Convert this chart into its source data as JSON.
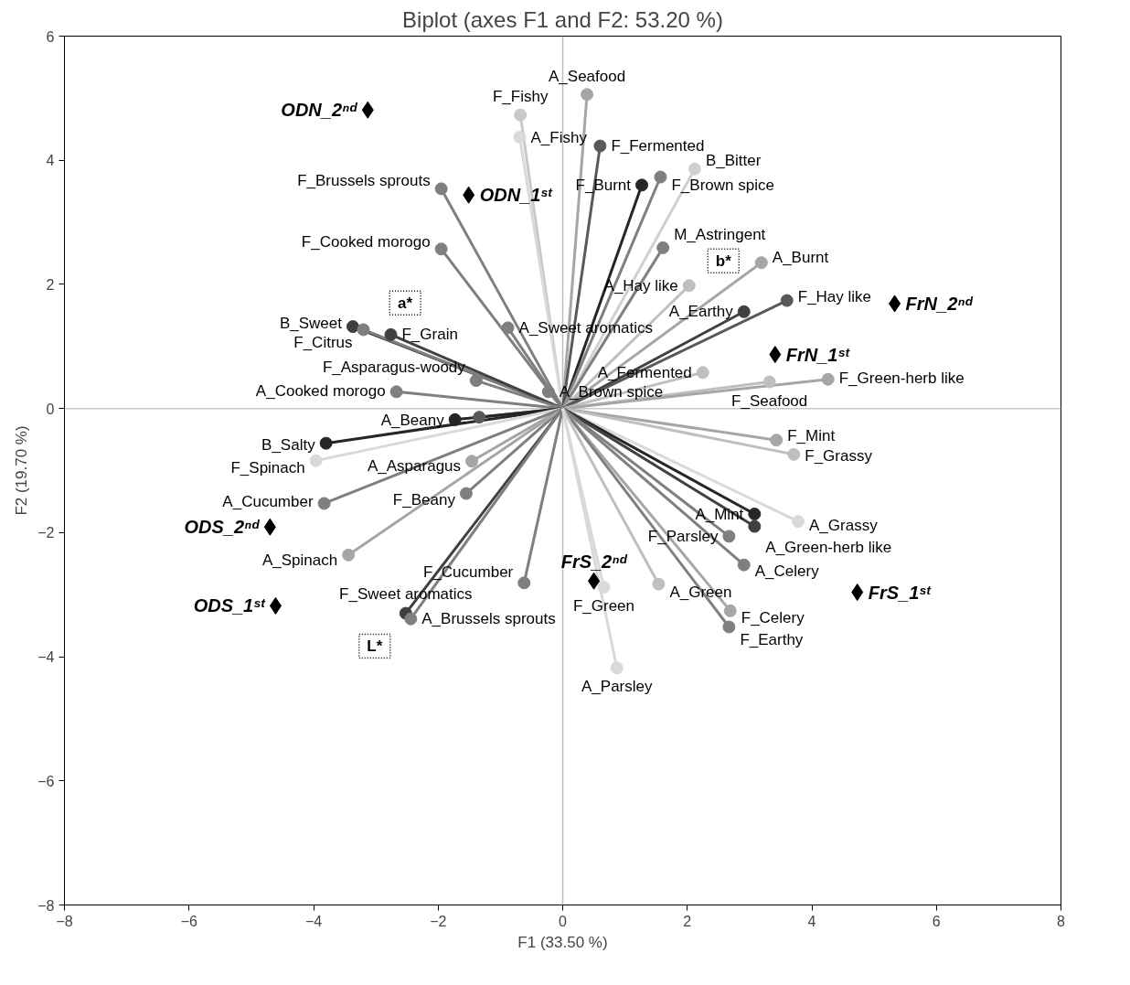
{
  "chart_data": {
    "type": "scatter",
    "title": "Biplot (axes F1 and F2: 53.20 %)",
    "xlabel": "F1 (33.50 %)",
    "ylabel": "F2 (19.70 %)",
    "xlim": [
      -8,
      8
    ],
    "xticks": [
      -8,
      -6,
      -4,
      -2,
      0,
      2,
      4,
      6,
      8
    ],
    "ylim": [
      -8,
      6
    ],
    "yticks": [
      -8,
      -6,
      -4,
      -2,
      0,
      2,
      4,
      6
    ],
    "grid": false,
    "legend": false,
    "ref_lines": [
      {
        "axis": "x",
        "value": 0,
        "color": "#bfbfbf"
      },
      {
        "axis": "y",
        "value": 0,
        "color": "#c8c8c8"
      }
    ],
    "series": [
      {
        "type": "lollipop",
        "marker": "circle",
        "x": [
          -0.68,
          -0.69,
          0.39,
          0.6,
          1.27,
          1.57,
          2.12,
          1.61,
          2.03,
          3.19,
          2.91,
          3.6,
          2.25,
          3.32,
          4.26,
          -1.95,
          -1.95,
          -0.88,
          -3.37,
          -3.2,
          -2.76,
          -2.67,
          -1.39,
          -0.23,
          -1.34,
          -1.73,
          -3.8,
          -3.96,
          -1.46,
          -3.83,
          -1.55,
          -3.44,
          -2.52,
          -2.44,
          -0.62,
          3.43,
          3.71,
          3.78,
          3.08,
          3.08,
          2.67,
          2.91,
          2.69,
          2.67,
          1.54,
          0.66,
          0.87
        ],
        "values": [
          4.73,
          4.37,
          5.06,
          4.23,
          3.6,
          3.73,
          3.86,
          2.59,
          1.98,
          2.35,
          1.56,
          1.74,
          0.58,
          0.43,
          0.47,
          3.54,
          2.57,
          1.3,
          1.32,
          1.27,
          1.19,
          0.27,
          0.45,
          0.27,
          -0.14,
          -0.18,
          -0.56,
          -0.84,
          -0.85,
          -1.53,
          -1.37,
          -2.36,
          -3.3,
          -3.39,
          -2.81,
          -0.51,
          -0.74,
          -1.82,
          -1.7,
          -1.9,
          -2.06,
          -2.52,
          -3.26,
          -3.52,
          -2.83,
          -2.88,
          -4.18
        ],
        "colors": [
          "#c8c8c8",
          "#d9d9d9",
          "#a6a6a6",
          "#595959",
          "#262626",
          "#7f7f7f",
          "#d0d0d0",
          "#7f7f7f",
          "#bfbfbf",
          "#a6a6a6",
          "#404040",
          "#595959",
          "#bfbfbf",
          "#bfbfbf",
          "#a6a6a6",
          "#7f7f7f",
          "#7f7f7f",
          "#7f7f7f",
          "#404040",
          "#7f7f7f",
          "#404040",
          "#7f7f7f",
          "#7f7f7f",
          "#7f7f7f",
          "#595959",
          "#262626",
          "#262626",
          "#d9d9d9",
          "#a6a6a6",
          "#7f7f7f",
          "#7f7f7f",
          "#a6a6a6",
          "#404040",
          "#7f7f7f",
          "#7f7f7f",
          "#a6a6a6",
          "#bfbfbf",
          "#d9d9d9",
          "#262626",
          "#404040",
          "#7f7f7f",
          "#7f7f7f",
          "#a6a6a6",
          "#7f7f7f",
          "#bfbfbf",
          "#d9d9d9",
          "#d9d9d9"
        ]
      },
      {
        "name": "ODN_2ⁿᵈ",
        "marker": "diamond",
        "color": "#000000",
        "x": [
          -3.13
        ],
        "values": [
          4.81
        ]
      },
      {
        "name": "ODN_1ˢᵗ",
        "marker": "diamond",
        "color": "#000000",
        "x": [
          -1.51
        ],
        "values": [
          3.44
        ]
      },
      {
        "name": "FrN_2ⁿᵈ",
        "marker": "diamond",
        "color": "#000000",
        "x": [
          5.33
        ],
        "values": [
          1.69
        ]
      },
      {
        "name": "FrN_1ˢᵗ",
        "marker": "diamond",
        "color": "#000000",
        "x": [
          3.41
        ],
        "values": [
          0.87
        ]
      },
      {
        "name": "FrS_2ⁿᵈ",
        "marker": "diamond",
        "color": "#000000",
        "x": [
          0.5
        ],
        "values": [
          -2.78
        ]
      },
      {
        "name": "FrS_1ˢᵗ",
        "marker": "diamond",
        "color": "#000000",
        "x": [
          4.73
        ],
        "values": [
          -2.96
        ]
      },
      {
        "name": "ODS_2ⁿᵈ",
        "marker": "diamond",
        "color": "#000000",
        "x": [
          -4.7
        ],
        "values": [
          -1.91
        ]
      },
      {
        "name": "ODS_1ˢᵗ",
        "marker": "diamond",
        "color": "#000000",
        "x": [
          -4.61
        ],
        "values": [
          -3.18
        ]
      },
      {
        "name": "a*",
        "marker": "square",
        "line_style": "dotted",
        "color": "#000000",
        "x": [
          -2.53
        ],
        "values": [
          1.7
        ]
      },
      {
        "name": "b*",
        "marker": "square",
        "line_style": "dotted",
        "color": "#000000",
        "x": [
          2.58
        ],
        "values": [
          2.38
        ]
      },
      {
        "name": "L*",
        "marker": "square",
        "line_style": "dotted",
        "color": "#000000",
        "x": [
          -3.02
        ],
        "values": [
          -3.83
        ]
      }
    ],
    "annotations": [
      {
        "text": "F_Fishy",
        "x": -0.68,
        "y": 4.73
      },
      {
        "text": "A_Fishy",
        "x": -0.69,
        "y": 4.37
      },
      {
        "text": "A_Seafood",
        "x": 0.39,
        "y": 5.06
      },
      {
        "text": "F_Fermented",
        "x": 0.6,
        "y": 4.23
      },
      {
        "text": "F_Burnt",
        "x": 1.27,
        "y": 3.6
      },
      {
        "text": "F_Brown spice",
        "x": 1.57,
        "y": 3.73
      },
      {
        "text": "B_Bitter",
        "x": 2.12,
        "y": 3.86
      },
      {
        "text": "M_Astringent",
        "x": 1.61,
        "y": 2.59
      },
      {
        "text": "A_Hay like",
        "x": 2.03,
        "y": 1.98
      },
      {
        "text": "A_Burnt",
        "x": 3.19,
        "y": 2.35
      },
      {
        "text": "A_Earthy",
        "x": 2.91,
        "y": 1.56
      },
      {
        "text": "F_Hay like",
        "x": 3.6,
        "y": 1.74
      },
      {
        "text": "A_Fermented",
        "x": 2.25,
        "y": 0.58
      },
      {
        "text": "F_Seafood",
        "x": 3.32,
        "y": 0.43
      },
      {
        "text": "F_Green-herb like",
        "x": 4.26,
        "y": 0.47
      },
      {
        "text": "F_Brussels sprouts",
        "x": -1.95,
        "y": 3.54
      },
      {
        "text": "F_Cooked morogo",
        "x": -1.95,
        "y": 2.57
      },
      {
        "text": "A_Sweet aromatics",
        "x": -0.88,
        "y": 1.3
      },
      {
        "text": "B_Sweet",
        "x": -3.37,
        "y": 1.32
      },
      {
        "text": "F_Citrus",
        "x": -3.2,
        "y": 1.27
      },
      {
        "text": "F_Grain",
        "x": -2.76,
        "y": 1.19
      },
      {
        "text": "A_Cooked morogo",
        "x": -2.67,
        "y": 0.27
      },
      {
        "text": "F_Asparagus-woody",
        "x": -1.39,
        "y": 0.45
      },
      {
        "text": "A_Brown spice",
        "x": -0.23,
        "y": 0.27
      },
      {
        "text": "A_Beany",
        "x": -1.73,
        "y": -0.18
      },
      {
        "text": "B_Salty",
        "x": -3.8,
        "y": -0.56
      },
      {
        "text": "F_Spinach",
        "x": -3.96,
        "y": -0.84
      },
      {
        "text": "A_Asparagus",
        "x": -1.46,
        "y": -0.85
      },
      {
        "text": "A_Cucumber",
        "x": -3.83,
        "y": -1.53
      },
      {
        "text": "F_Beany",
        "x": -1.55,
        "y": -1.37
      },
      {
        "text": "A_Spinach",
        "x": -3.44,
        "y": -2.36
      },
      {
        "text": "F_Sweet aromatics",
        "x": -2.52,
        "y": -3.3
      },
      {
        "text": "A_Brussels sprouts",
        "x": -2.44,
        "y": -3.39
      },
      {
        "text": "F_Cucumber",
        "x": -0.62,
        "y": -2.81
      },
      {
        "text": "F_Mint",
        "x": 3.43,
        "y": -0.51
      },
      {
        "text": "F_Grassy",
        "x": 3.71,
        "y": -0.74
      },
      {
        "text": "A_Grassy",
        "x": 3.78,
        "y": -1.82
      },
      {
        "text": "A_Mint",
        "x": 3.08,
        "y": -1.7
      },
      {
        "text": "A_Green-herb like",
        "x": 3.08,
        "y": -1.9
      },
      {
        "text": "F_Parsley",
        "x": 2.67,
        "y": -2.06
      },
      {
        "text": "A_Celery",
        "x": 2.91,
        "y": -2.52
      },
      {
        "text": "F_Celery",
        "x": 2.69,
        "y": -3.26
      },
      {
        "text": "F_Earthy",
        "x": 2.67,
        "y": -3.52
      },
      {
        "text": "A_Green",
        "x": 1.54,
        "y": -2.83
      },
      {
        "text": "F_Green",
        "x": 0.66,
        "y": -2.88
      },
      {
        "text": "A_Parsley",
        "x": 0.87,
        "y": -4.18
      }
    ]
  }
}
